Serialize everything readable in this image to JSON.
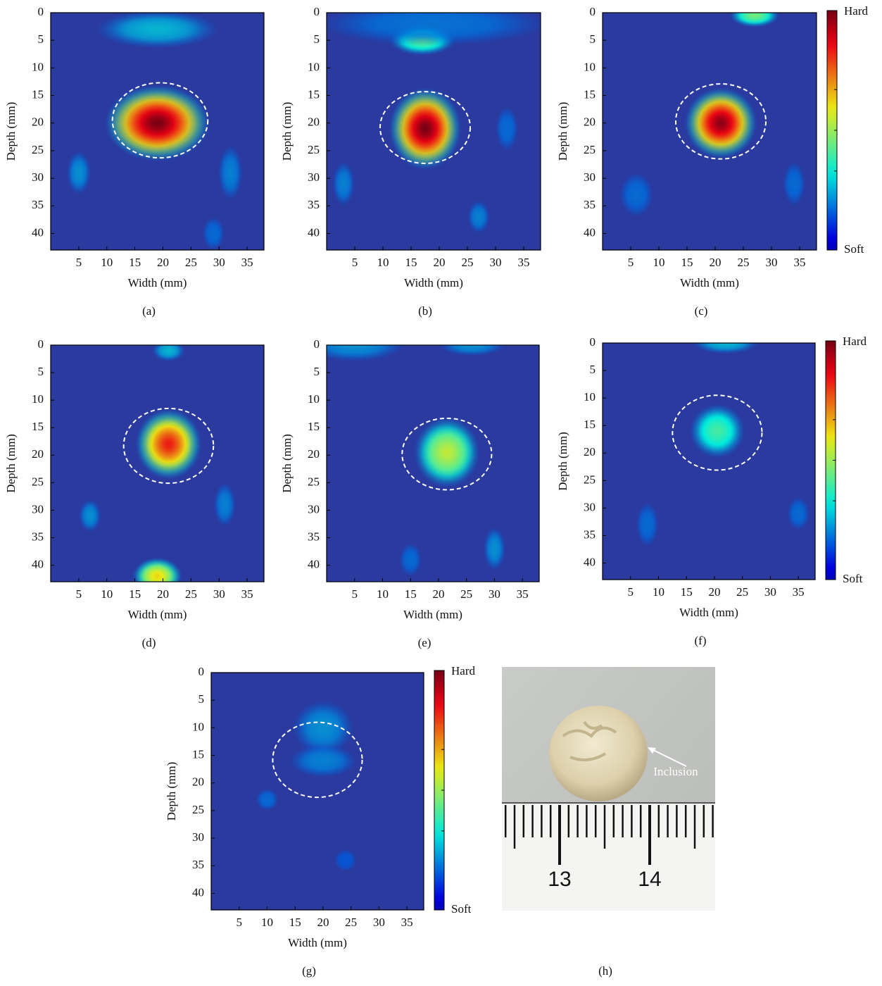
{
  "chart_data": [
    {
      "type": "heatmap",
      "caption": "(a)",
      "xlabel": "Width (mm)",
      "ylabel": "Depth (mm)",
      "xlim": [
        0,
        38
      ],
      "ylim": [
        0,
        43
      ],
      "xticks": [
        5,
        10,
        15,
        20,
        25,
        30,
        35
      ],
      "yticks": [
        0,
        5,
        10,
        15,
        20,
        25,
        30,
        35,
        40
      ],
      "y_inverted": true
    },
    {
      "type": "heatmap",
      "caption": "(b)",
      "xlabel": "Width (mm)",
      "ylabel": "Depth (mm)",
      "xlim": [
        0,
        38
      ],
      "ylim": [
        0,
        43
      ],
      "xticks": [
        5,
        10,
        15,
        20,
        25,
        30,
        35
      ],
      "yticks": [
        0,
        5,
        10,
        15,
        20,
        25,
        30,
        35,
        40
      ],
      "y_inverted": true
    },
    {
      "type": "heatmap",
      "caption": "(c)",
      "xlabel": "Width (mm)",
      "ylabel": "Depth (mm)",
      "xlim": [
        0,
        38
      ],
      "ylim": [
        0,
        43
      ],
      "xticks": [
        5,
        10,
        15,
        20,
        25,
        30,
        35
      ],
      "yticks": [
        0,
        5,
        10,
        15,
        20,
        25,
        30,
        35,
        40
      ],
      "y_inverted": true,
      "colorbar": {
        "high": "Hard",
        "low": "Soft"
      }
    },
    {
      "type": "heatmap",
      "caption": "(d)",
      "xlabel": "Width (mm)",
      "ylabel": "Depth (mm)",
      "xlim": [
        0,
        38
      ],
      "ylim": [
        0,
        43
      ],
      "xticks": [
        5,
        10,
        15,
        20,
        25,
        30,
        35
      ],
      "yticks": [
        0,
        5,
        10,
        15,
        20,
        25,
        30,
        35,
        40
      ],
      "y_inverted": true
    },
    {
      "type": "heatmap",
      "caption": "(e)",
      "xlabel": "Width (mm)",
      "ylabel": "Depth (mm)",
      "xlim": [
        0,
        38
      ],
      "ylim": [
        0,
        43
      ],
      "xticks": [
        5,
        10,
        15,
        20,
        25,
        30,
        35
      ],
      "yticks": [
        0,
        5,
        10,
        15,
        20,
        25,
        30,
        35,
        40
      ],
      "y_inverted": true
    },
    {
      "type": "heatmap",
      "caption": "(f)",
      "xlabel": "Width (mm)",
      "ylabel": "Depth (mm)",
      "xlim": [
        0,
        38
      ],
      "ylim": [
        0,
        43
      ],
      "xticks": [
        5,
        10,
        15,
        20,
        25,
        30,
        35
      ],
      "yticks": [
        0,
        5,
        10,
        15,
        20,
        25,
        30,
        35,
        40
      ],
      "y_inverted": true,
      "colorbar": {
        "high": "Hard",
        "low": "Soft"
      }
    },
    {
      "type": "heatmap",
      "caption": "(g)",
      "xlabel": "Width (mm)",
      "ylabel": "Depth (mm)",
      "xlim": [
        0,
        38
      ],
      "ylim": [
        0,
        43
      ],
      "xticks": [
        5,
        10,
        15,
        20,
        25,
        30,
        35
      ],
      "yticks": [
        0,
        5,
        10,
        15,
        20,
        25,
        30,
        35,
        40
      ],
      "y_inverted": true,
      "colorbar": {
        "high": "Hard",
        "low": "Soft"
      }
    }
  ],
  "photo": {
    "caption": "(h)",
    "annotation": "Inclusion",
    "ruler_labels": [
      13,
      14
    ]
  }
}
